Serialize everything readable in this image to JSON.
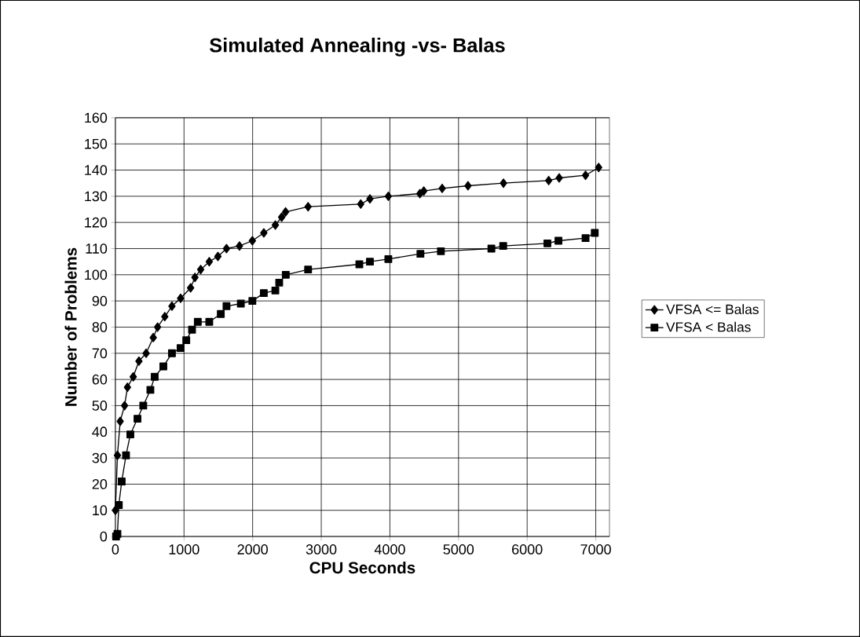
{
  "chart_data": {
    "type": "line",
    "title": "Simulated Annealing -vs- Balas",
    "xlabel": "CPU Seconds",
    "ylabel": "Number of Problems",
    "xlim": [
      0,
      7200
    ],
    "ylim": [
      0,
      160
    ],
    "xticks": [
      0,
      1000,
      2000,
      3000,
      4000,
      5000,
      6000,
      7000
    ],
    "yticks": [
      0,
      10,
      20,
      30,
      40,
      50,
      60,
      70,
      80,
      90,
      100,
      110,
      120,
      130,
      140,
      150,
      160
    ],
    "grid": true,
    "legend": "right",
    "series": [
      {
        "name": "VFSA <=  Balas",
        "color": "#000000",
        "marker": "diamond",
        "x": [
          0,
          30,
          70,
          134,
          176,
          260,
          343,
          448,
          552,
          615,
          720,
          824,
          950,
          1096,
          1159,
          1243,
          1368,
          1494,
          1619,
          1808,
          1996,
          2163,
          2331,
          2423,
          2480,
          2808,
          3575,
          3709,
          3977,
          4437,
          4494,
          4762,
          5138,
          5655,
          6314,
          6467,
          6851,
          7042
        ],
        "values": [
          10,
          31,
          44,
          50,
          57,
          61,
          67,
          70,
          76,
          80,
          84,
          88,
          91,
          95,
          99,
          102,
          105,
          107,
          110,
          111,
          113,
          116,
          119,
          122,
          124,
          126,
          127,
          129,
          130,
          131,
          132,
          133,
          134,
          135,
          136,
          137,
          138,
          141
        ]
      },
      {
        "name": "VFSA < Balas",
        "color": "#000000",
        "marker": "square",
        "x": [
          10,
          30,
          50,
          92,
          155,
          218,
          322,
          406,
          510,
          573,
          699,
          824,
          950,
          1033,
          1117,
          1201,
          1368,
          1536,
          1619,
          1828,
          1996,
          2163,
          2331,
          2387,
          2483,
          2808,
          3555,
          3709,
          3977,
          4445,
          4743,
          5479,
          5651,
          6295,
          6456,
          6851,
          6985
        ],
        "values": [
          0,
          1,
          12,
          21,
          31,
          39,
          45,
          50,
          56,
          61,
          65,
          70,
          72,
          75,
          79,
          82,
          82,
          85,
          88,
          89,
          90,
          93,
          94,
          97,
          100,
          102,
          104,
          105,
          106,
          108,
          109,
          110,
          111,
          112,
          113,
          114,
          116
        ]
      }
    ]
  }
}
